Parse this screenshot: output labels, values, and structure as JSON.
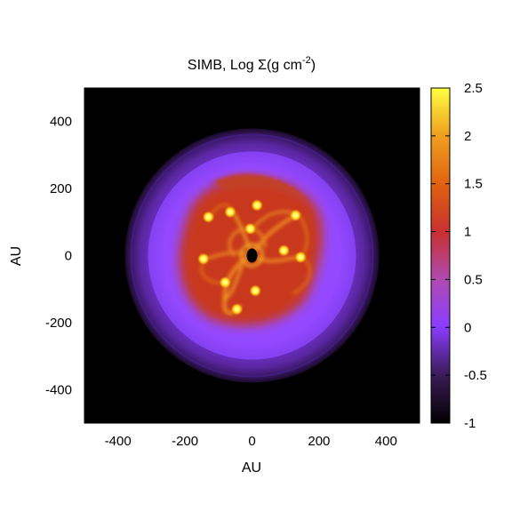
{
  "chart_data": {
    "type": "heatmap",
    "title": "SIMB, Log Σ(g cm",
    "title_exponent": "-2",
    "title_close": ")",
    "xlabel": "AU",
    "ylabel": "AU",
    "xlim": [
      -500,
      500
    ],
    "ylim": [
      -500,
      500
    ],
    "x_ticks": [
      -400,
      -200,
      0,
      200,
      400
    ],
    "y_ticks": [
      -400,
      -200,
      0,
      200,
      400
    ],
    "x_tick_labels": [
      "-400",
      "-200",
      "0",
      "200",
      "400"
    ],
    "y_tick_labels": [
      "-400",
      "-200",
      "0",
      "200",
      "400"
    ],
    "colorbar": {
      "range": [
        -1,
        2.5
      ],
      "ticks": [
        -1,
        -0.5,
        0,
        0.5,
        1,
        1.5,
        2,
        2.5
      ],
      "tick_labels": [
        "-1",
        "-0.5",
        "0",
        "0.5",
        "1",
        "1.5",
        "2",
        "2.5"
      ],
      "colormap": "gnuplot-like: black → purple → magenta → red → orange → yellow",
      "stops": [
        "#000000",
        "#3a1a55",
        "#8a3dff",
        "#b04ab0",
        "#c83030",
        "#e06010",
        "#f0a020",
        "#ffff40"
      ]
    },
    "background_value": -1,
    "features": {
      "outer_envelope_log_sigma": -0.6,
      "disk_log_sigma": -0.05,
      "spiral_region_log_sigma": 1.0,
      "clump_log_sigma": 2.3,
      "central_hole_log_sigma": -1,
      "outer_envelope_radius_au": 380,
      "disk_radius_au": 310,
      "spiral_region_radius_au": 180,
      "central_hole_radius_au": 15
    },
    "clumps_au": [
      {
        "x": -130,
        "y": 115
      },
      {
        "x": -65,
        "y": 130
      },
      {
        "x": 15,
        "y": 150
      },
      {
        "x": 130,
        "y": 120
      },
      {
        "x": 145,
        "y": -5
      },
      {
        "x": 95,
        "y": 15
      },
      {
        "x": -145,
        "y": -10
      },
      {
        "x": -80,
        "y": -80
      },
      {
        "x": -45,
        "y": -160
      },
      {
        "x": 10,
        "y": -105
      },
      {
        "x": -5,
        "y": 80
      }
    ]
  }
}
